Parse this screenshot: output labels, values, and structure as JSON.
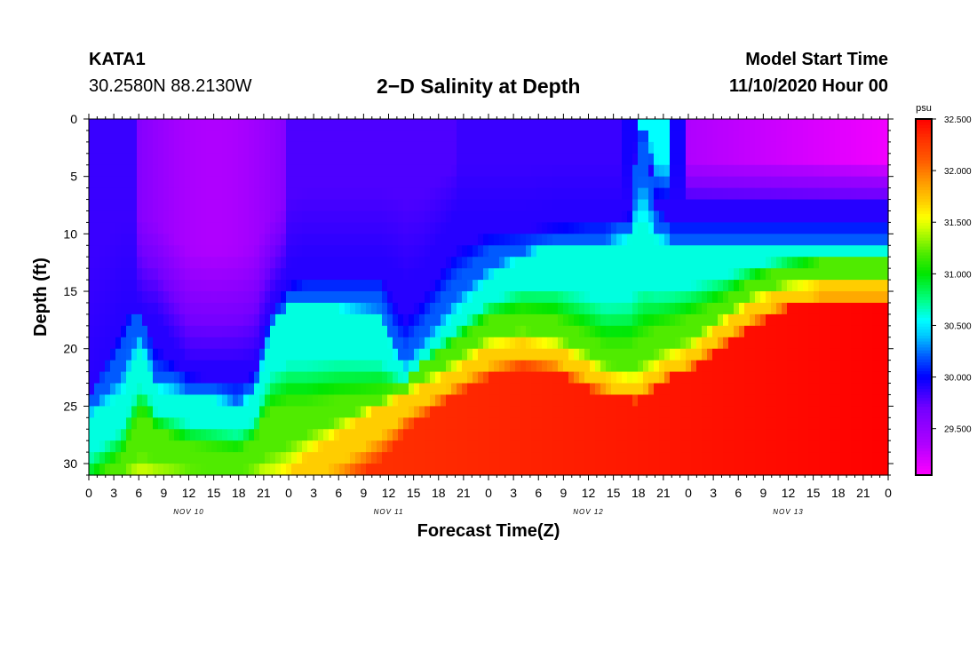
{
  "header": {
    "station": "KATA1",
    "coordinates": "30.2580N 88.2130W",
    "title": "2−D Salinity at Depth",
    "model_start_label": "Model Start Time",
    "model_start_value": "11/10/2020 Hour 00"
  },
  "chart_data": {
    "type": "heatmap",
    "title": "2−D Salinity at Depth",
    "xlabel": "Forecast Time(Z)",
    "ylabel": "Depth (ft)",
    "x_hours": [
      0,
      96
    ],
    "x_tick_labels": [
      "0",
      "3",
      "6",
      "9",
      "12",
      "15",
      "18",
      "21",
      "0",
      "3",
      "6",
      "9",
      "12",
      "15",
      "18",
      "21",
      "0",
      "3",
      "6",
      "9",
      "12",
      "15",
      "18",
      "21",
      "0",
      "3",
      "6",
      "9",
      "12",
      "15",
      "18",
      "21",
      "0"
    ],
    "day_labels": [
      "NOV 10",
      "NOV 11",
      "NOV 12",
      "NOV 13"
    ],
    "y_ticks": [
      0,
      5,
      10,
      15,
      20,
      25,
      30
    ],
    "ylim": [
      31,
      0
    ],
    "colorbar": {
      "unit": "psu",
      "min": 29.05,
      "max": 32.5,
      "tick_labels": [
        "32.500",
        "32.000",
        "31.500",
        "31.000",
        "30.500",
        "30.000",
        "29.500"
      ],
      "tick_values": [
        32.5,
        32.0,
        31.5,
        31.0,
        30.5,
        30.0,
        29.5
      ]
    },
    "layer_boundaries": {
      "note_units": "hours vs depth (ft)",
      "hours": [
        0,
        4,
        5,
        6,
        7,
        8,
        12,
        18,
        20,
        21,
        22,
        24,
        26,
        30,
        35,
        37,
        38,
        40,
        44,
        48,
        52,
        56,
        60,
        62,
        65,
        66,
        67,
        68,
        70,
        72,
        76,
        80,
        84,
        88,
        92,
        96
      ],
      "S29_9": [
        23.5,
        16,
        16,
        16,
        17,
        17,
        21.5,
        21.5,
        21,
        18,
        16,
        13,
        12,
        12,
        12,
        13,
        14,
        13,
        8,
        8,
        8,
        7.5,
        7.5,
        7.5,
        7.5,
        2,
        2,
        7,
        7.5,
        7.5,
        7.5,
        7.5,
        7.5,
        7.5,
        7.5,
        7.5
      ],
      "S30_2": [
        24.5,
        20,
        17.5,
        17,
        19,
        22,
        23,
        24,
        23,
        20,
        17.5,
        15.5,
        15,
        15,
        15,
        19,
        20,
        18,
        14,
        11.5,
        11,
        10.5,
        10,
        10,
        9,
        1,
        1,
        8,
        10,
        10,
        10,
        10,
        10,
        10,
        10,
        10
      ],
      "S30_6": [
        26,
        24,
        22,
        20,
        21,
        23.5,
        24,
        25,
        24,
        21,
        18,
        16.5,
        16.5,
        16.5,
        17.5,
        21,
        22,
        20.5,
        17,
        14,
        12,
        11,
        11,
        11,
        10.5,
        9,
        9,
        10.5,
        11,
        11,
        11,
        11,
        11,
        11,
        11,
        11
      ],
      "S31_2": [
        32,
        29.5,
        27.5,
        26,
        26,
        27,
        28.5,
        29,
        28,
        26,
        25.5,
        25,
        25,
        24.5,
        24,
        23.5,
        23,
        21.5,
        19.5,
        17.5,
        17,
        17.5,
        19,
        20,
        20,
        19.5,
        19,
        18.5,
        18,
        17.5,
        16,
        14,
        13,
        12.5,
        12.5,
        12.5
      ],
      "S31_7": [
        32,
        32,
        32,
        32,
        32,
        32,
        32,
        32,
        32,
        32,
        32,
        31,
        29.5,
        27.5,
        25,
        24.5,
        24,
        23.5,
        22,
        20,
        19.5,
        20,
        21.5,
        22.5,
        23,
        23,
        22.5,
        22,
        21,
        20.5,
        18,
        16,
        15,
        14.5,
        14.5,
        14.5
      ],
      "S32_2": [
        33,
        33,
        33,
        33,
        33,
        33,
        33,
        33,
        33,
        33,
        33,
        33,
        33,
        32,
        29.5,
        28,
        27,
        26,
        24,
        22.5,
        21.5,
        22,
        23.5,
        24,
        24.5,
        24.5,
        24,
        23.5,
        22.5,
        22,
        20,
        18,
        16.5,
        16,
        16,
        16
      ]
    }
  }
}
